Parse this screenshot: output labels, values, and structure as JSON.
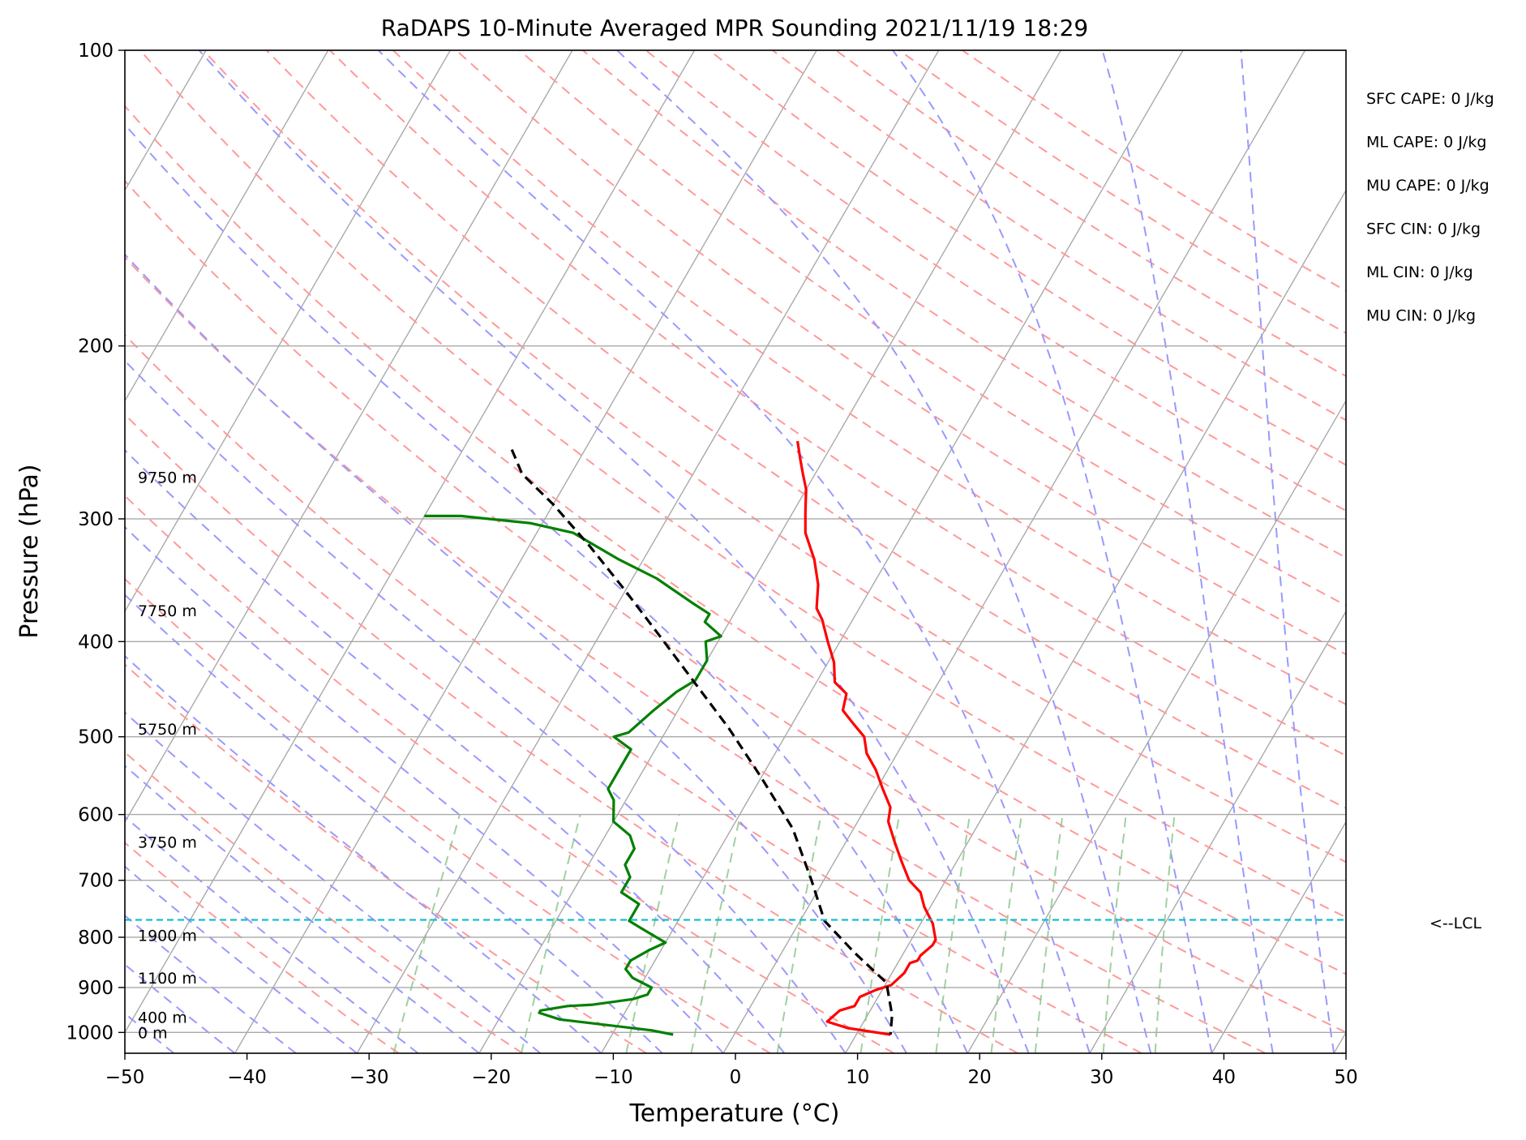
{
  "chart_data": {
    "type": "line",
    "title": "RaDAPS 10-Minute Averaged MPR Sounding 2021/11/19 18:29",
    "xlabel": "Temperature (°C)",
    "ylabel": "Pressure (hPa)",
    "xlim": [
      -50,
      50
    ],
    "ylim": [
      1050,
      100
    ],
    "y_scale": "log",
    "grid": true,
    "x_ticks": [
      "−50",
      "−40",
      "−30",
      "−20",
      "−10",
      "0",
      "10",
      "20",
      "30",
      "40",
      "50"
    ],
    "y_ticks": [
      {
        "value": 100,
        "label": "100"
      },
      {
        "value": 200,
        "label": "200"
      },
      {
        "value": 300,
        "label": "300"
      },
      {
        "value": 400,
        "label": "400"
      },
      {
        "value": 500,
        "label": "500"
      },
      {
        "value": 600,
        "label": "600"
      },
      {
        "value": 700,
        "label": "700"
      },
      {
        "value": 800,
        "label": "800"
      },
      {
        "value": 900,
        "label": "900"
      },
      {
        "value": 1000,
        "label": "1000"
      }
    ],
    "series": [
      {
        "color": "#ff0000",
        "points": [
          [
            -23,
            250
          ],
          [
            -22,
            260
          ],
          [
            -21,
            270
          ],
          [
            -20,
            280
          ],
          [
            -19,
            295
          ],
          [
            -18,
            310
          ],
          [
            -16,
            330
          ],
          [
            -14.5,
            350
          ],
          [
            -13.5,
            370
          ],
          [
            -12.5,
            380
          ],
          [
            -11,
            400
          ],
          [
            -9.5,
            420
          ],
          [
            -8.5,
            440
          ],
          [
            -7,
            452
          ],
          [
            -6.5,
            470
          ],
          [
            -5,
            485
          ],
          [
            -3.5,
            500
          ],
          [
            -2.5,
            520
          ],
          [
            -1,
            540
          ],
          [
            0.5,
            565
          ],
          [
            2,
            590
          ],
          [
            2.5,
            610
          ],
          [
            4,
            640
          ],
          [
            5.5,
            670
          ],
          [
            7,
            700
          ],
          [
            8.5,
            720
          ],
          [
            9.5,
            745
          ],
          [
            11,
            775
          ],
          [
            12,
            805
          ],
          [
            12,
            815
          ],
          [
            11.5,
            835
          ],
          [
            11.5,
            845
          ],
          [
            11,
            850
          ],
          [
            11,
            870
          ],
          [
            10.5,
            895
          ],
          [
            9.5,
            905
          ],
          [
            8.5,
            920
          ],
          [
            8.5,
            940
          ],
          [
            7.5,
            950
          ],
          [
            7,
            975
          ],
          [
            9,
            990
          ],
          [
            12.8,
            1005
          ]
        ]
      },
      {
        "color": "#008000",
        "points": [
          [
            -50,
            298
          ],
          [
            -47,
            298
          ],
          [
            -41,
            303
          ],
          [
            -37,
            310
          ],
          [
            -32,
            330
          ],
          [
            -28,
            345
          ],
          [
            -24,
            365
          ],
          [
            -22,
            375
          ],
          [
            -22,
            382
          ],
          [
            -20,
            395
          ],
          [
            -21,
            400
          ],
          [
            -20,
            418
          ],
          [
            -20,
            438
          ],
          [
            -21,
            450
          ],
          [
            -22,
            470
          ],
          [
            -23,
            495
          ],
          [
            -24,
            500
          ],
          [
            -22,
            515
          ],
          [
            -22,
            535
          ],
          [
            -22,
            565
          ],
          [
            -21,
            580
          ],
          [
            -20,
            610
          ],
          [
            -18,
            630
          ],
          [
            -17,
            650
          ],
          [
            -17,
            675
          ],
          [
            -16,
            695
          ],
          [
            -16,
            720
          ],
          [
            -14,
            740
          ],
          [
            -14,
            770
          ],
          [
            -12,
            790
          ],
          [
            -10,
            810
          ],
          [
            -11,
            825
          ],
          [
            -12,
            845
          ],
          [
            -12,
            862
          ],
          [
            -11,
            880
          ],
          [
            -9,
            900
          ],
          [
            -9,
            915
          ],
          [
            -10,
            925
          ],
          [
            -13,
            937
          ],
          [
            -15,
            940
          ],
          [
            -17,
            950
          ],
          [
            -17,
            955
          ],
          [
            -15,
            970
          ],
          [
            -7,
            995
          ],
          [
            -5,
            1005
          ]
        ]
      },
      {
        "color": "#000000",
        "dashed": true,
        "points": [
          [
            -46,
            255
          ],
          [
            -44,
            270
          ],
          [
            -40,
            290
          ],
          [
            -35,
            320
          ],
          [
            -30,
            355
          ],
          [
            -25,
            395
          ],
          [
            -20,
            440
          ],
          [
            -15,
            490
          ],
          [
            -10,
            550
          ],
          [
            -5,
            620
          ],
          [
            -1,
            700
          ],
          [
            2,
            770
          ],
          [
            6,
            830
          ],
          [
            10,
            890
          ],
          [
            12,
            960
          ],
          [
            12.8,
            1005
          ]
        ]
      }
    ],
    "lcl_hpa": 768,
    "lcl_label": "<--LCL",
    "height_labels": [
      {
        "text": "9750 m",
        "p": 272
      },
      {
        "text": "7750 m",
        "p": 372
      },
      {
        "text": "5750 m",
        "p": 491
      },
      {
        "text": "3750 m",
        "p": 640
      },
      {
        "text": "1900 m",
        "p": 796
      },
      {
        "text": "1100 m",
        "p": 880
      },
      {
        "text": "400 m",
        "p": 965
      },
      {
        "text": "0 m",
        "p": 1000
      }
    ],
    "stats": [
      "SFC CAPE: 0 J/kg",
      "ML CAPE: 0 J/kg",
      "MU CAPE: 0 J/kg",
      "SFC CIN: 0 J/kg",
      "ML CIN: 0 J/kg",
      "MU CIN: 0 J/kg"
    ],
    "colors": {
      "isotherm": "#a9a9a9",
      "dry_adiabat": "#ff9999",
      "moist_adiabat": "#9999ff",
      "mixing_ratio": "#88c488",
      "lcl": "#17becf"
    }
  }
}
